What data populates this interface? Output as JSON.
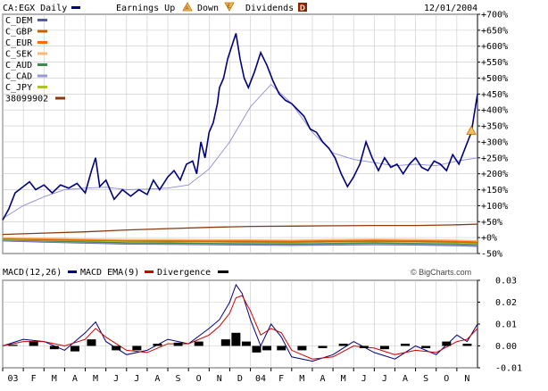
{
  "header": {
    "symbol_label": "CA:EGX Daily",
    "earnings_up_label": "Earnings Up",
    "down_label": "Down",
    "dividends_label": "Dividends",
    "earnings_up_glyph": "A",
    "down_glyph": "E",
    "dividends_glyph": "D",
    "date": "12/01/2004",
    "credit": "© BigCharts.com"
  },
  "colors": {
    "price": "#00007f",
    "moving_average": "#8c8cd8",
    "macd": "#000080",
    "macd_ema": "#cc0000",
    "divergence": "#000000",
    "grid": "#c8c8c8",
    "border": "#000000"
  },
  "chart_data": [
    {
      "type": "line",
      "name": "price-panel",
      "y_unit": "%",
      "ylim": [
        -50,
        700
      ],
      "y_ticks": [
        "+700%",
        "+650%",
        "+600%",
        "+550%",
        "+500%",
        "+450%",
        "+400%",
        "+350%",
        "+300%",
        "+250%",
        "+200%",
        "+150%",
        "+100%",
        "+50%",
        "+0%",
        "-50%"
      ],
      "y_tick_values": [
        700,
        650,
        600,
        550,
        500,
        450,
        400,
        350,
        300,
        250,
        200,
        150,
        100,
        50,
        0,
        -50
      ],
      "x_range": [
        0,
        23
      ],
      "x_ticks": [
        "03",
        "F",
        "M",
        "A",
        "M",
        "J",
        "J",
        "A",
        "S",
        "O",
        "N",
        "D",
        "04",
        "F",
        "M",
        "A",
        "M",
        "J",
        "J",
        "A",
        "S",
        "O",
        "N"
      ],
      "grid": true,
      "legend_position": "top-left",
      "legend": [
        {
          "label": "C_DEM",
          "color": "#5a5aa0"
        },
        {
          "label": "C_GBP",
          "color": "#c06000"
        },
        {
          "label": "C_EUR",
          "color": "#ff6a00"
        },
        {
          "label": "C_SEK",
          "color": "#ffb878"
        },
        {
          "label": "C_AUD",
          "color": "#3a8a50"
        },
        {
          "label": "C_CAD",
          "color": "#9a9ad0"
        },
        {
          "label": "C_JPY",
          "color": "#a8c820"
        },
        {
          "label": "38099902",
          "color": "#8b3a10"
        }
      ],
      "series": [
        {
          "name": "CA:EGX",
          "color": "#00007f",
          "x": [
            0,
            0.3,
            0.6,
            1.0,
            1.3,
            1.6,
            2.0,
            2.4,
            2.8,
            3.2,
            3.6,
            4.0,
            4.3,
            4.5,
            4.7,
            5.0,
            5.4,
            5.8,
            6.2,
            6.6,
            7.0,
            7.3,
            7.6,
            8.0,
            8.3,
            8.6,
            8.9,
            9.2,
            9.4,
            9.6,
            9.8,
            10.0,
            10.2,
            10.4,
            10.5,
            10.7,
            10.9,
            11.0,
            11.1,
            11.3,
            11.5,
            11.7,
            11.9,
            12.2,
            12.5,
            12.8,
            13.1,
            13.4,
            13.7,
            14.0,
            14.3,
            14.6,
            14.9,
            15.2,
            15.5,
            15.8,
            16.1,
            16.4,
            16.7,
            17.0,
            17.3,
            17.6,
            17.9,
            18.2,
            18.5,
            18.8,
            19.1,
            19.4,
            19.7,
            20.0,
            20.3,
            20.6,
            20.9,
            21.2,
            21.5,
            21.8,
            22.1,
            22.4,
            22.7,
            23.0
          ],
          "y": [
            55,
            90,
            140,
            160,
            175,
            150,
            165,
            140,
            165,
            155,
            170,
            140,
            210,
            250,
            160,
            180,
            120,
            150,
            130,
            150,
            135,
            180,
            150,
            190,
            210,
            180,
            230,
            240,
            200,
            300,
            250,
            330,
            360,
            420,
            470,
            500,
            560,
            580,
            600,
            640,
            560,
            500,
            470,
            520,
            580,
            540,
            490,
            450,
            430,
            420,
            400,
            380,
            340,
            330,
            300,
            280,
            250,
            200,
            160,
            190,
            230,
            300,
            250,
            210,
            250,
            220,
            230,
            200,
            230,
            250,
            220,
            210,
            240,
            230,
            210,
            260,
            230,
            280,
            330,
            450
          ]
        },
        {
          "name": "moving-average",
          "color": "#8c8cd8",
          "x": [
            0,
            1,
            2,
            3,
            4,
            5,
            6,
            7,
            8,
            9,
            10,
            11,
            12,
            13,
            14,
            15,
            16,
            17,
            18,
            19,
            20,
            21,
            22,
            23
          ],
          "y": [
            60,
            100,
            128,
            150,
            155,
            158,
            150,
            152,
            155,
            165,
            215,
            300,
            410,
            480,
            420,
            330,
            265,
            245,
            235,
            225,
            230,
            225,
            240,
            250
          ]
        },
        {
          "name": "38099902",
          "color": "#8b3a10",
          "x": [
            0,
            2,
            4,
            6,
            8,
            10,
            12,
            14,
            16,
            18,
            20,
            22,
            23
          ],
          "y": [
            10,
            14,
            18,
            24,
            28,
            32,
            35,
            36,
            37,
            38,
            38,
            40,
            42
          ]
        },
        {
          "name": "C_SEK",
          "color": "#ffb878",
          "x": [
            0,
            2,
            4,
            6,
            8,
            10,
            12,
            14,
            16,
            18,
            20,
            22,
            23
          ],
          "y": [
            0,
            -2,
            -4,
            -6,
            -6,
            -7,
            -7,
            -8,
            -6,
            -5,
            -6,
            -8,
            -10
          ]
        },
        {
          "name": "C_EUR",
          "color": "#ff6a00",
          "x": [
            0,
            2,
            4,
            6,
            8,
            10,
            12,
            14,
            16,
            18,
            20,
            22,
            23
          ],
          "y": [
            -2,
            -4,
            -6,
            -9,
            -9,
            -10,
            -10,
            -11,
            -9,
            -8,
            -9,
            -11,
            -13
          ]
        },
        {
          "name": "C_GBP",
          "color": "#c06000",
          "x": [
            0,
            2,
            4,
            6,
            8,
            10,
            12,
            14,
            16,
            18,
            20,
            22,
            23
          ],
          "y": [
            -3,
            -6,
            -8,
            -10,
            -11,
            -12,
            -13,
            -14,
            -12,
            -11,
            -12,
            -14,
            -16
          ]
        },
        {
          "name": "C_JPY",
          "color": "#a8c820",
          "x": [
            0,
            2,
            4,
            6,
            8,
            10,
            12,
            14,
            16,
            18,
            20,
            22,
            23
          ],
          "y": [
            -5,
            -8,
            -10,
            -12,
            -13,
            -14,
            -15,
            -16,
            -14,
            -13,
            -14,
            -16,
            -18
          ]
        },
        {
          "name": "C_AUD",
          "color": "#3a8a50",
          "x": [
            0,
            2,
            4,
            6,
            8,
            10,
            12,
            14,
            16,
            18,
            20,
            22,
            23
          ],
          "y": [
            -6,
            -10,
            -13,
            -16,
            -17,
            -18,
            -19,
            -20,
            -18,
            -17,
            -18,
            -20,
            -22
          ]
        },
        {
          "name": "C_CAD",
          "color": "#9a9ad0",
          "x": [
            0,
            2,
            4,
            6,
            8,
            10,
            12,
            14,
            16,
            18,
            20,
            22,
            23
          ],
          "y": [
            -8,
            -12,
            -15,
            -18,
            -19,
            -20,
            -21,
            -22,
            -21,
            -20,
            -21,
            -23,
            -25
          ]
        },
        {
          "name": "C_DEM",
          "color": "#5a5aa0",
          "x": [
            0,
            2,
            4,
            6,
            8,
            10,
            12,
            14,
            16,
            18,
            20,
            22,
            23
          ],
          "y": [
            -10,
            -14,
            -17,
            -20,
            -21,
            -22,
            -23,
            -24,
            -23,
            -22,
            -23,
            -25,
            -27
          ]
        }
      ],
      "annotations": [
        {
          "type": "earnings-up",
          "x": 22.7,
          "y": 335
        }
      ]
    },
    {
      "type": "line",
      "name": "macd-panel",
      "legend": [
        "MACD(12,26)",
        "MACD EMA(9)",
        "Divergence"
      ],
      "ylim": [
        -0.01,
        0.03
      ],
      "y_ticks": [
        "0.03",
        "0.02",
        "0.01",
        "0.00",
        "-0.01"
      ],
      "y_tick_values": [
        0.03,
        0.02,
        0.01,
        0.0,
        -0.01
      ],
      "x_range": [
        0,
        23
      ],
      "grid": true,
      "series": [
        {
          "name": "MACD(12,26)",
          "color": "#000080",
          "x": [
            0,
            1,
            2,
            3,
            4,
            4.5,
            5,
            6,
            7,
            8,
            9,
            10,
            10.5,
            11,
            11.3,
            11.6,
            12,
            12.5,
            13,
            13.5,
            14,
            15,
            16,
            17,
            18,
            19,
            20,
            21,
            22,
            22.5,
            23
          ],
          "y": [
            0.0,
            0.003,
            0.002,
            -0.002,
            0.006,
            0.011,
            0.002,
            -0.004,
            -0.002,
            0.003,
            0.001,
            0.008,
            0.012,
            0.02,
            0.028,
            0.024,
            0.012,
            0.0,
            0.01,
            0.004,
            -0.005,
            -0.007,
            -0.004,
            0.002,
            -0.003,
            -0.006,
            0.0,
            -0.004,
            0.005,
            0.002,
            0.01
          ]
        },
        {
          "name": "MACD EMA(9)",
          "color": "#cc0000",
          "x": [
            0,
            1,
            2,
            3,
            4,
            4.5,
            5,
            6,
            7,
            8,
            9,
            10,
            10.5,
            11,
            11.3,
            11.6,
            12,
            12.5,
            13,
            13.5,
            14,
            15,
            16,
            17,
            18,
            19,
            20,
            21,
            22,
            22.5,
            23
          ],
          "y": [
            0.0,
            0.002,
            0.002,
            0.0,
            0.003,
            0.008,
            0.004,
            -0.002,
            -0.003,
            0.001,
            0.001,
            0.005,
            0.009,
            0.015,
            0.022,
            0.023,
            0.016,
            0.005,
            0.008,
            0.006,
            -0.002,
            -0.006,
            -0.005,
            0.0,
            -0.001,
            -0.004,
            -0.002,
            -0.003,
            0.002,
            0.003,
            0.008
          ]
        },
        {
          "name": "Divergence",
          "color": "#000000",
          "type": "bar",
          "x": [
            0.5,
            1.5,
            2.5,
            3.5,
            4.3,
            5.5,
            6.5,
            7.5,
            8.5,
            9.5,
            10.8,
            11.3,
            11.8,
            12.3,
            12.8,
            13.5,
            14.5,
            15.5,
            16.5,
            17.5,
            18.5,
            19.5,
            20.5,
            21.5,
            22.5
          ],
          "y": [
            0.0005,
            0.002,
            -0.0015,
            -0.0025,
            0.003,
            -0.002,
            -0.002,
            0.001,
            0.0015,
            0.002,
            0.003,
            0.006,
            0.002,
            -0.003,
            -0.002,
            -0.002,
            -0.002,
            -0.001,
            0.001,
            -0.001,
            -0.0015,
            0.001,
            -0.001,
            0.002,
            0.001
          ]
        }
      ]
    }
  ]
}
